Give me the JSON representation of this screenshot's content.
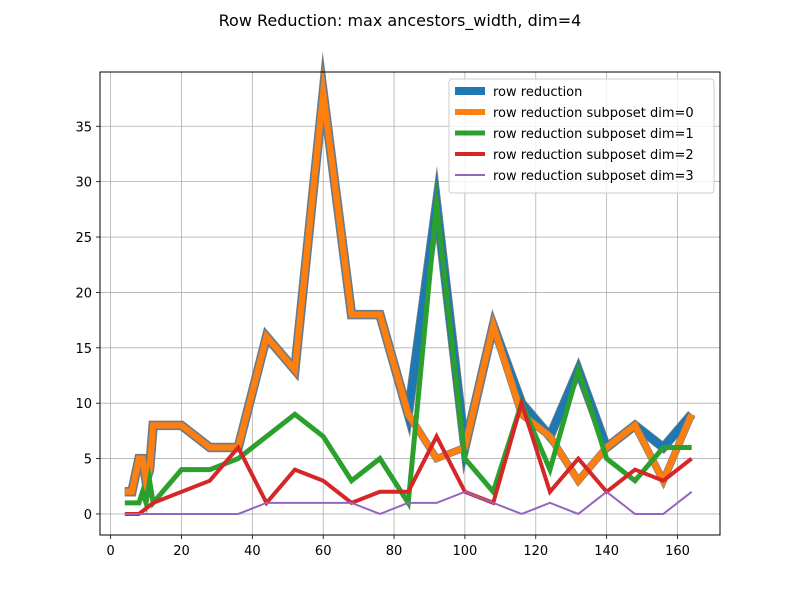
{
  "chart_data": {
    "type": "line",
    "title": "Row Reduction: max ancestors_width, dim=4",
    "xlabel": "",
    "ylabel": "",
    "xlim": [
      -3,
      172
    ],
    "ylim": [
      -1.9,
      39.9
    ],
    "xticks": [
      0,
      20,
      40,
      60,
      80,
      100,
      120,
      140,
      160
    ],
    "yticks": [
      0,
      5,
      10,
      15,
      20,
      25,
      30,
      35
    ],
    "grid": true,
    "legend_position": "top-right",
    "series": [
      {
        "name": "row reduction",
        "color": "#1f77b4",
        "x": [
          4,
          6,
          8,
          9,
          10,
          11,
          12,
          20,
          28,
          36,
          44,
          52,
          60,
          68,
          76,
          84,
          92,
          100,
          108,
          116,
          124,
          132,
          140,
          148,
          156,
          164
        ],
        "y": [
          2,
          2,
          5,
          5,
          3,
          4,
          8,
          8,
          6,
          6,
          16,
          13,
          38,
          18,
          18,
          9,
          28,
          6,
          17,
          10,
          7,
          13,
          6,
          8,
          6,
          9
        ]
      },
      {
        "name": "row reduction subposet dim=0",
        "color": "#ff7f0e",
        "x": [
          4,
          6,
          8,
          9,
          10,
          11,
          12,
          20,
          28,
          36,
          44,
          52,
          60,
          68,
          76,
          84,
          92,
          100,
          108,
          116,
          124,
          132,
          140,
          148,
          156,
          164
        ],
        "y": [
          2,
          2,
          5,
          5,
          3,
          4,
          8,
          8,
          6,
          6,
          16,
          13,
          38,
          18,
          18,
          9,
          5,
          6,
          17,
          9,
          7,
          3,
          6,
          8,
          3,
          9
        ]
      },
      {
        "name": "row reduction subposet dim=1",
        "color": "#2ca02c",
        "x": [
          4,
          8,
          9,
          10,
          11,
          12,
          20,
          28,
          36,
          44,
          52,
          60,
          68,
          76,
          84,
          92,
          100,
          108,
          116,
          124,
          132,
          140,
          148,
          156,
          164
        ],
        "y": [
          1,
          1,
          2,
          1,
          3,
          1,
          4,
          4,
          5,
          7,
          9,
          7,
          3,
          5,
          1,
          28,
          5,
          2,
          10,
          4,
          13,
          5,
          3,
          6,
          6
        ]
      },
      {
        "name": "row reduction subposet dim=2",
        "color": "#d62728",
        "x": [
          4,
          8,
          12,
          20,
          28,
          36,
          44,
          52,
          60,
          68,
          76,
          84,
          92,
          100,
          108,
          116,
          124,
          132,
          140,
          148,
          156,
          164
        ],
        "y": [
          0,
          0,
          1,
          2,
          3,
          6,
          1,
          4,
          3,
          1,
          2,
          2,
          7,
          2,
          1,
          10,
          2,
          5,
          2,
          4,
          3,
          5
        ]
      },
      {
        "name": "row reduction subposet dim=3",
        "color": "#9467bd",
        "x": [
          4,
          8,
          12,
          20,
          28,
          36,
          44,
          52,
          60,
          68,
          76,
          84,
          92,
          100,
          108,
          116,
          124,
          132,
          140,
          148,
          156,
          164
        ],
        "y": [
          0,
          0,
          0,
          0,
          0,
          0,
          1,
          1,
          1,
          1,
          0,
          1,
          1,
          2,
          1,
          0,
          1,
          0,
          2,
          0,
          0,
          2
        ]
      }
    ]
  }
}
